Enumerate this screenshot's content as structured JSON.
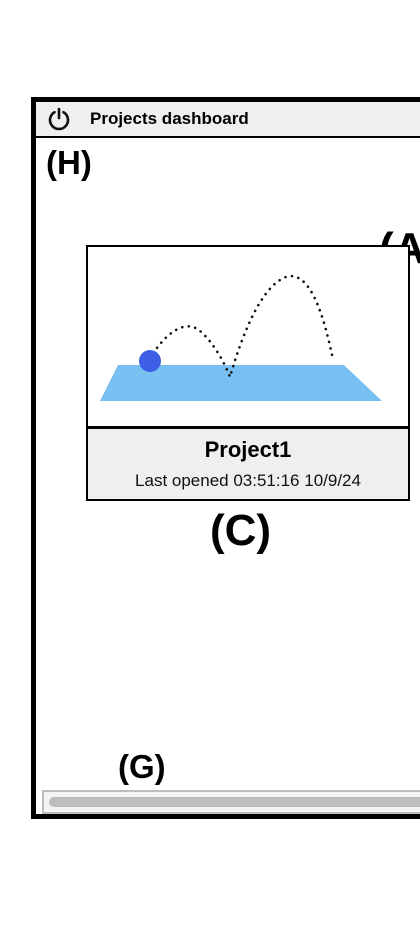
{
  "window": {
    "title": "Projects dashboard",
    "power_icon": "power-icon"
  },
  "annotations": {
    "h": "(H)",
    "a": "(A",
    "c": "(C)",
    "g": "(G)"
  },
  "projects": [
    {
      "name": "Project1",
      "last_opened": "Last opened 03:51:16 10/9/24",
      "thumbnail": {
        "ground_color": "#78bff2",
        "ball_color": "#3c5fe6",
        "trajectory_color": "#111111"
      }
    }
  ],
  "scrollbar": {
    "thumb_color": "#bdbdbd"
  }
}
